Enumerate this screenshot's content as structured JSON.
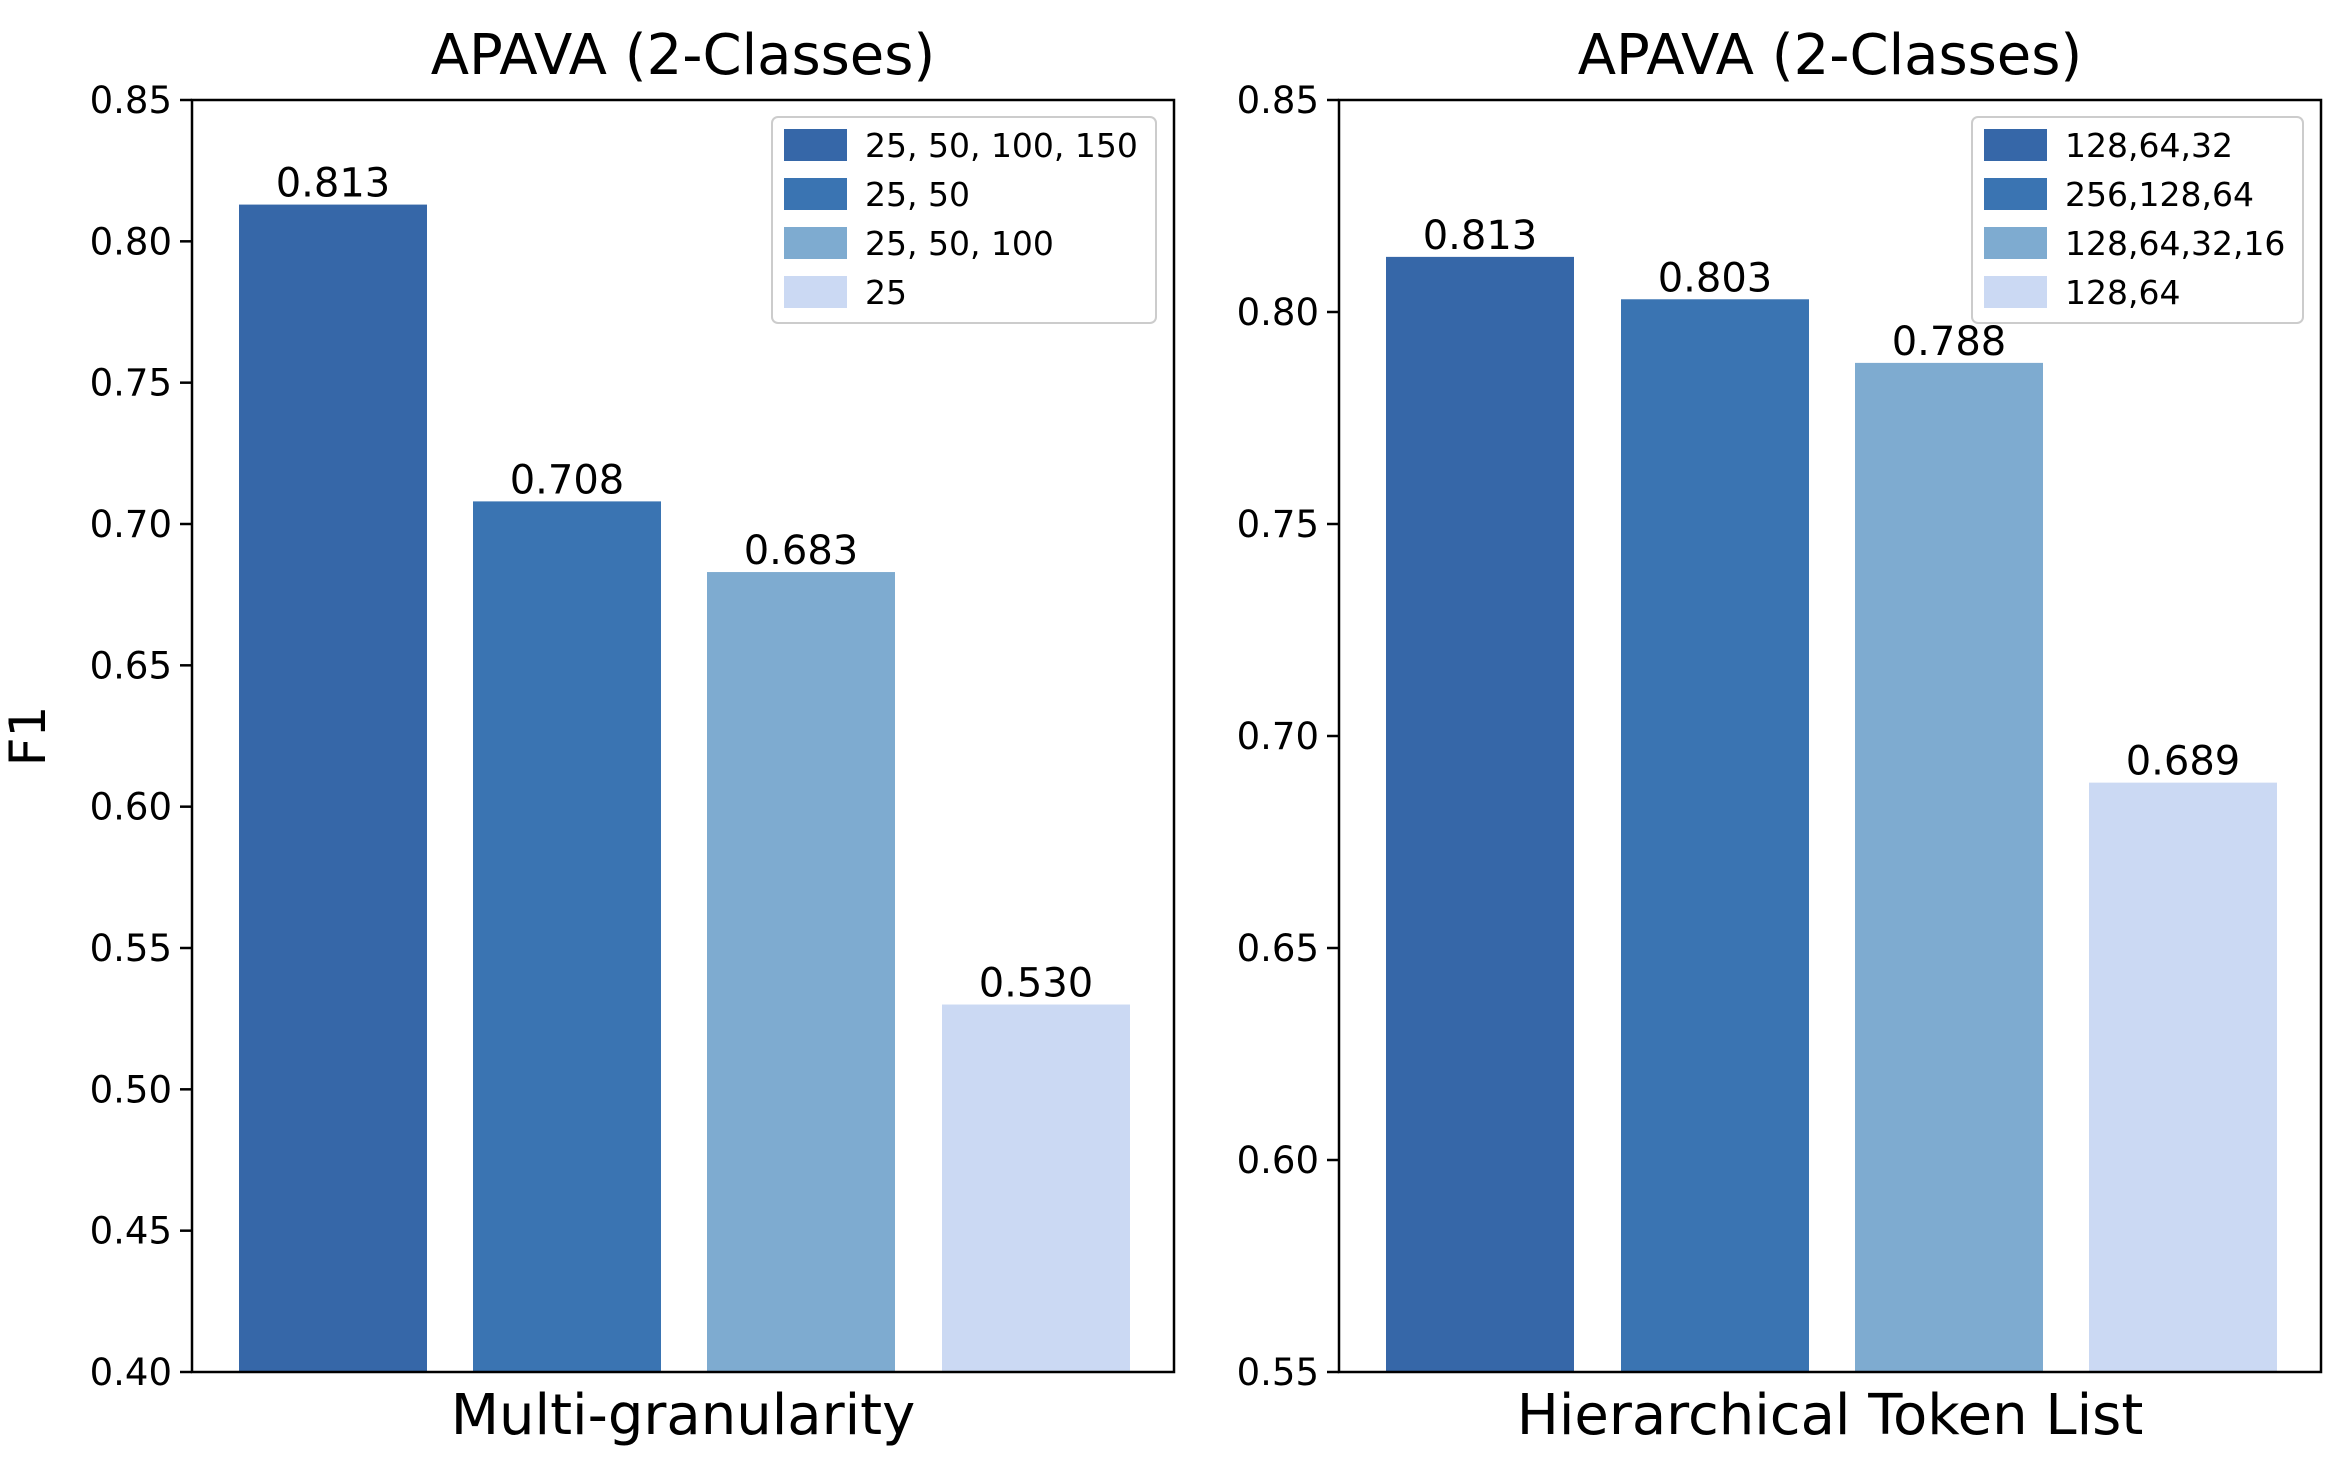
{
  "chart_data": [
    {
      "type": "bar",
      "title": "APAVA (2-Classes)",
      "xlabel": "Multi-granularity",
      "ylabel": "F1",
      "ylim": [
        0.4,
        0.85
      ],
      "yticks": [
        "0.40",
        "0.45",
        "0.50",
        "0.55",
        "0.60",
        "0.65",
        "0.70",
        "0.75",
        "0.80",
        "0.85"
      ],
      "categories": [
        "25, 50, 100, 150",
        "25, 50",
        "25, 50, 100",
        "25"
      ],
      "values": [
        0.813,
        0.708,
        0.683,
        0.53
      ],
      "value_labels": [
        "0.813",
        "0.708",
        "0.683",
        "0.530"
      ],
      "colors": [
        "#3667a8",
        "#3a74b2",
        "#7eabd0",
        "#cbd9f3"
      ],
      "legend": [
        "25, 50, 100, 150",
        "25, 50",
        "25, 50, 100",
        "25"
      ],
      "legend_position": "top-right"
    },
    {
      "type": "bar",
      "title": "APAVA (2-Classes)",
      "xlabel": "Hierarchical Token List",
      "ylabel": "",
      "ylim": [
        0.55,
        0.85
      ],
      "yticks": [
        "0.55",
        "0.60",
        "0.65",
        "0.70",
        "0.75",
        "0.80",
        "0.85"
      ],
      "categories": [
        "128,64,32",
        "256,128,64",
        "128,64,32,16",
        "128,64"
      ],
      "values": [
        0.813,
        0.803,
        0.788,
        0.689
      ],
      "value_labels": [
        "0.813",
        "0.803",
        "0.788",
        "0.689"
      ],
      "colors": [
        "#3667a8",
        "#3a74b2",
        "#7eabd0",
        "#cbd9f3"
      ],
      "legend": [
        "128,64,32",
        "256,128,64",
        "128,64,32,16",
        "128,64"
      ],
      "legend_position": "top-right"
    }
  ]
}
